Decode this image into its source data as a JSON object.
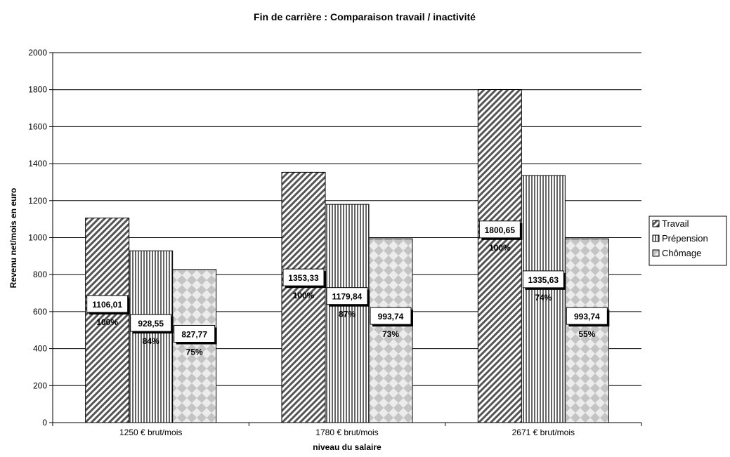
{
  "chart_data": {
    "type": "bar",
    "title": "Fin de carrière : Comparaison travail / inactivité",
    "xlabel": "niveau du salaire",
    "ylabel": "Revenu net/mois en euro",
    "ylim": [
      0,
      2000
    ],
    "yticks": [
      0,
      200,
      400,
      600,
      800,
      1000,
      1200,
      1400,
      1600,
      1800,
      2000
    ],
    "categories": [
      "1250 € brut/mois",
      "1780 € brut/mois",
      "2671 € brut/mois"
    ],
    "series": [
      {
        "name": "Travail",
        "values": [
          1106.01,
          1353.33,
          1800.65
        ],
        "labels": [
          "1106,01",
          "1353,33",
          "1800,65"
        ],
        "percent": [
          "100%",
          "100%",
          "100%"
        ],
        "pattern": "diagonal"
      },
      {
        "name": "Prépension",
        "values": [
          928.55,
          1179.84,
          1335.63
        ],
        "labels": [
          "928,55",
          "1179,84",
          "1335,63"
        ],
        "percent": [
          "84%",
          "87%",
          "74%"
        ],
        "pattern": "vertical"
      },
      {
        "name": "Chômage",
        "values": [
          827.77,
          993.74,
          993.74
        ],
        "labels": [
          "827,77",
          "993,74",
          "993,74"
        ],
        "percent": [
          "75%",
          "73%",
          "55%"
        ],
        "pattern": "diamond"
      }
    ],
    "grid": true,
    "legend": "right",
    "colors": {
      "bar_fill": "#ffffff",
      "pattern_dark": "#555555",
      "pattern_light": "#bbbbbb",
      "gridline": "#000000"
    }
  }
}
